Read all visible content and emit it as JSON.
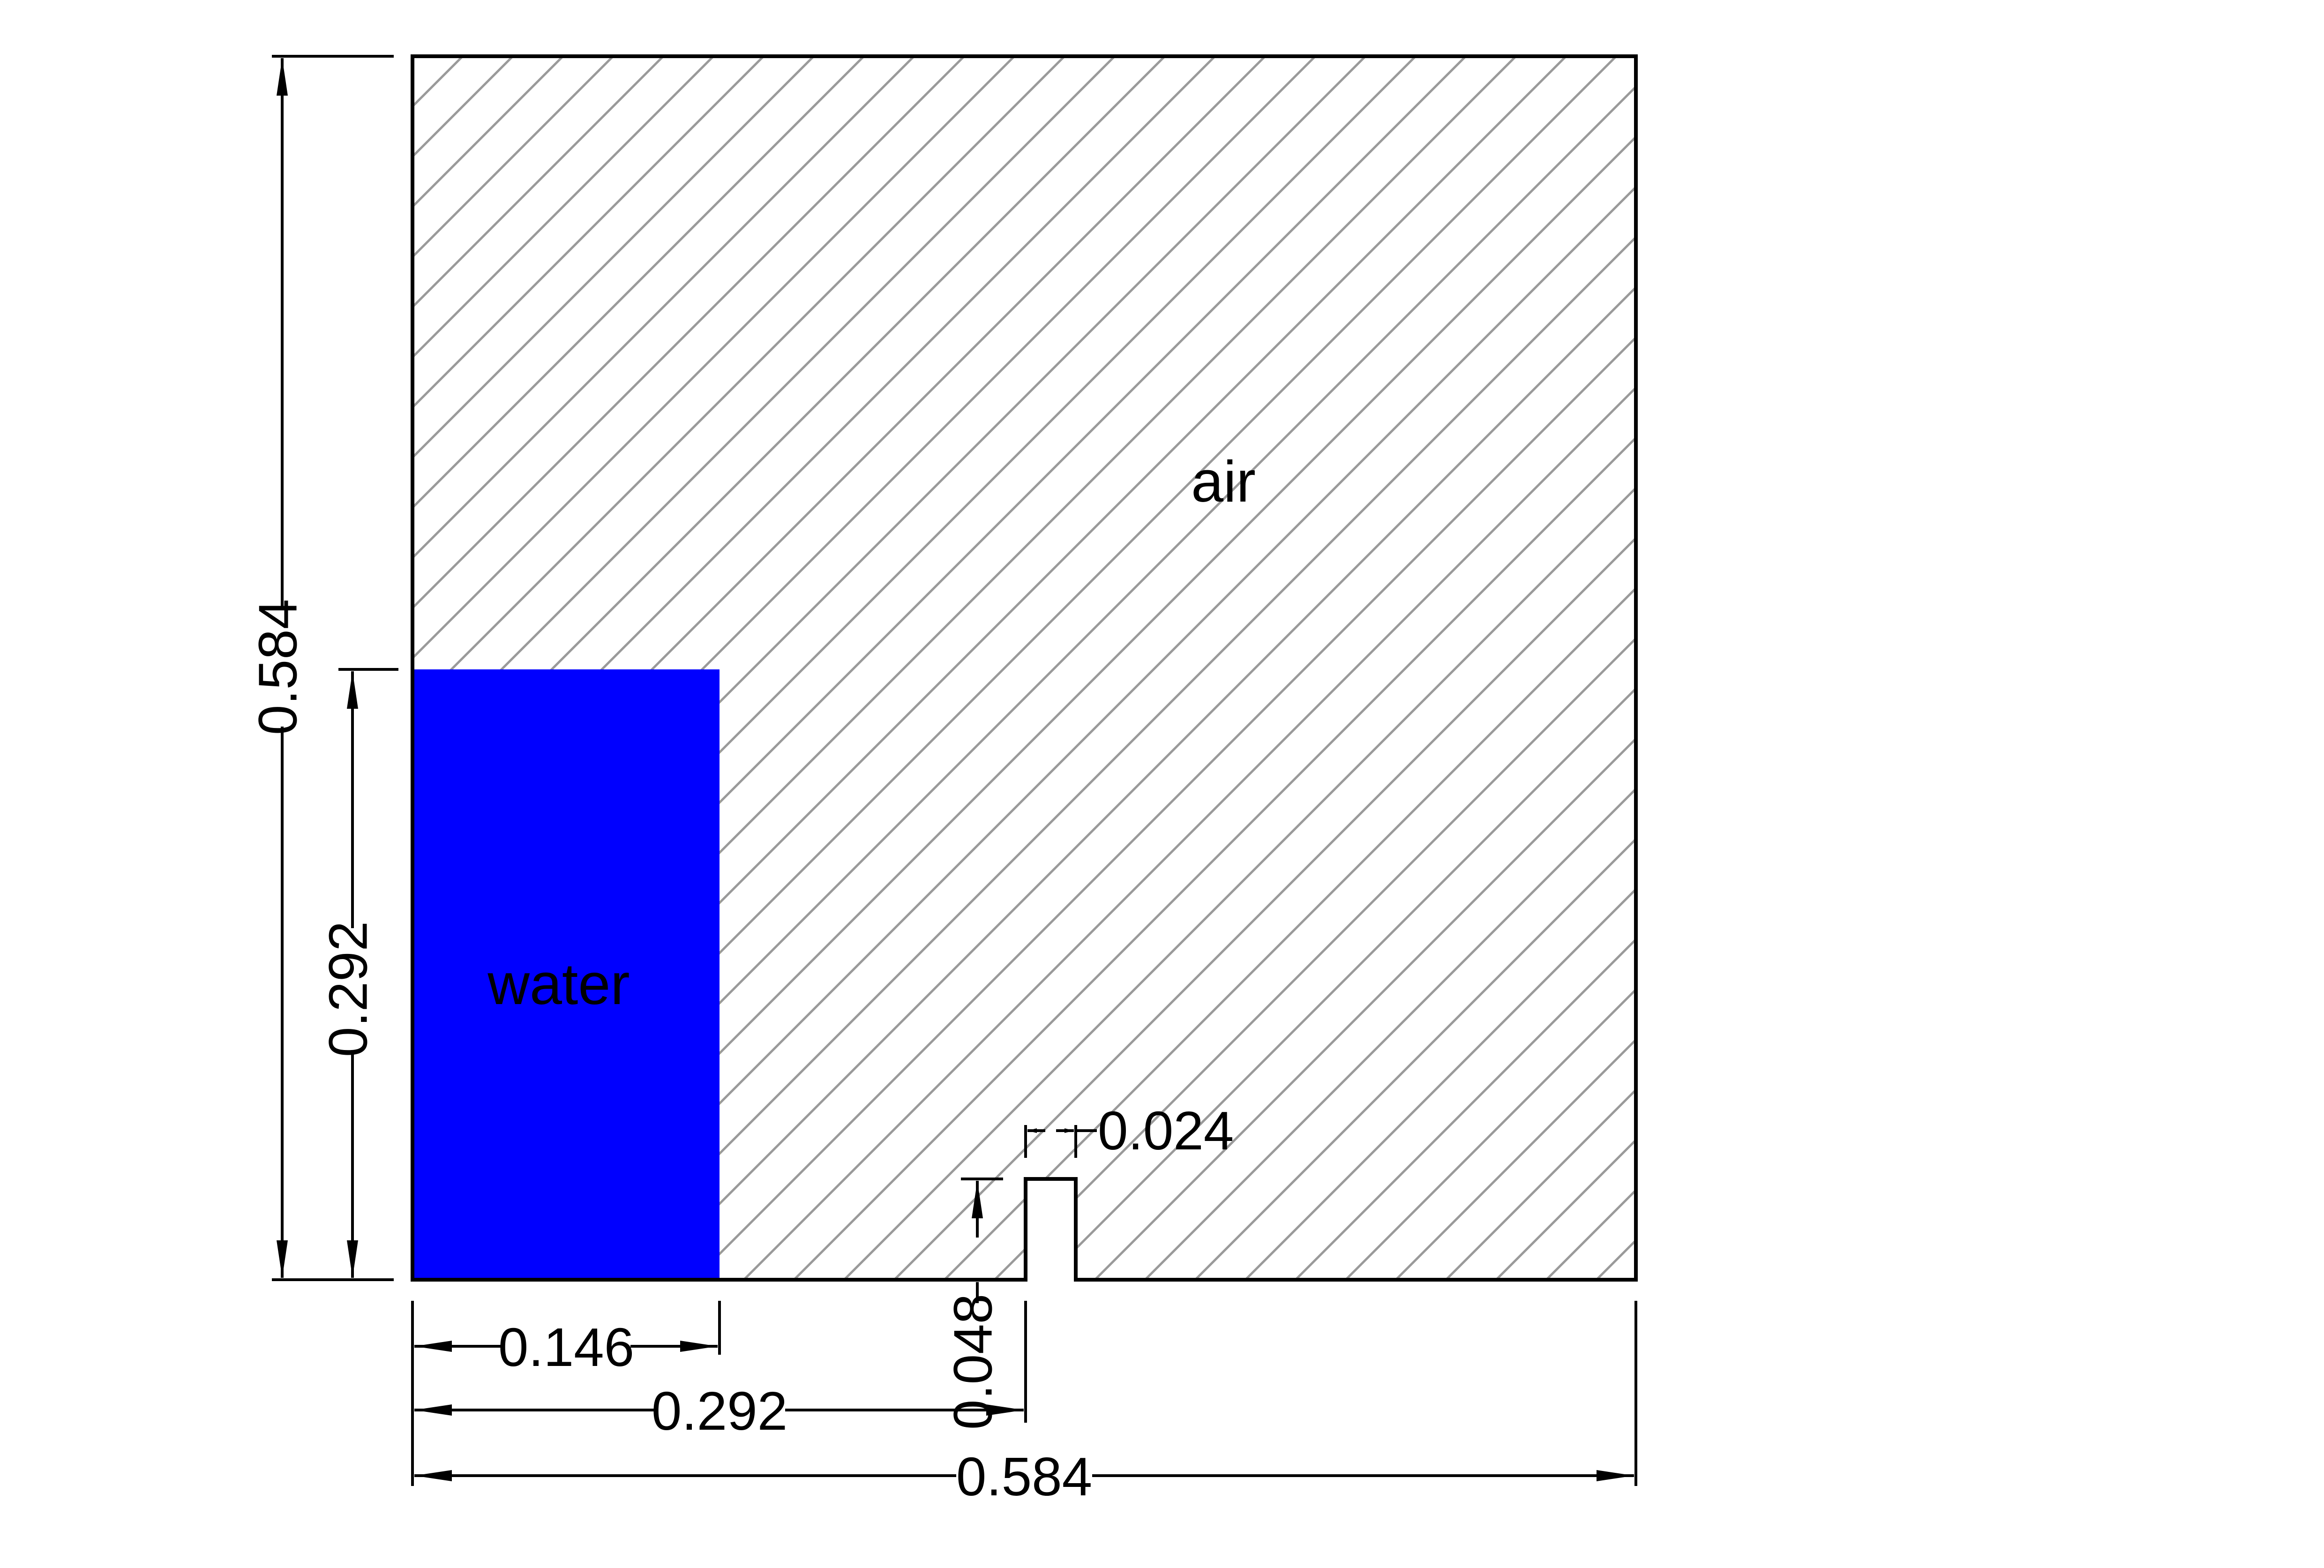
{
  "diagram": {
    "regions": {
      "air": {
        "label": "air"
      },
      "water": {
        "label": "water",
        "color": "#0000ff"
      }
    },
    "hatch_color": "#9a9a9a",
    "dimensions": {
      "total_height": "0.584",
      "water_height": "0.292",
      "water_width": "0.146",
      "obstacle_offset": "0.292",
      "total_width": "0.584",
      "obstacle_width": "0.024",
      "obstacle_height": "0.048"
    }
  }
}
